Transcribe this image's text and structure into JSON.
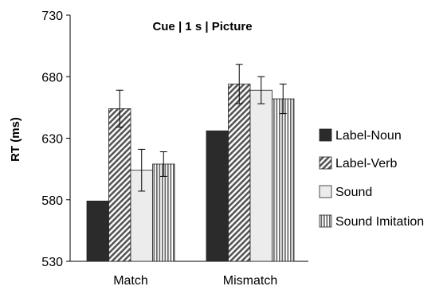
{
  "chart_data": {
    "type": "bar",
    "title": "Cue | 1 s | Picture",
    "ylabel": "RT (ms)",
    "xlabel": "",
    "ylim": [
      530,
      730
    ],
    "yticks": [
      "530",
      "580",
      "630",
      "680",
      "730"
    ],
    "categories": [
      "Match",
      "Mismatch"
    ],
    "legend_position": "right",
    "grid": false,
    "series": [
      {
        "name": "Label-Noun",
        "values": [
          579,
          636
        ],
        "errors": [
          null,
          null
        ],
        "fill": "solid-dark",
        "color": "#2b2b2b"
      },
      {
        "name": "Label-Verb",
        "values": [
          654,
          674
        ],
        "errors": [
          15,
          16
        ],
        "fill": "diagonal-hatch",
        "color": "#6e6e6e"
      },
      {
        "name": "Sound",
        "values": [
          604,
          669
        ],
        "errors": [
          17,
          11
        ],
        "fill": "light",
        "color": "#ececec"
      },
      {
        "name": "Sound Imitation",
        "values": [
          609,
          662
        ],
        "errors": [
          10,
          12
        ],
        "fill": "vertical-stripes",
        "color": "#8a8a8a"
      }
    ]
  }
}
